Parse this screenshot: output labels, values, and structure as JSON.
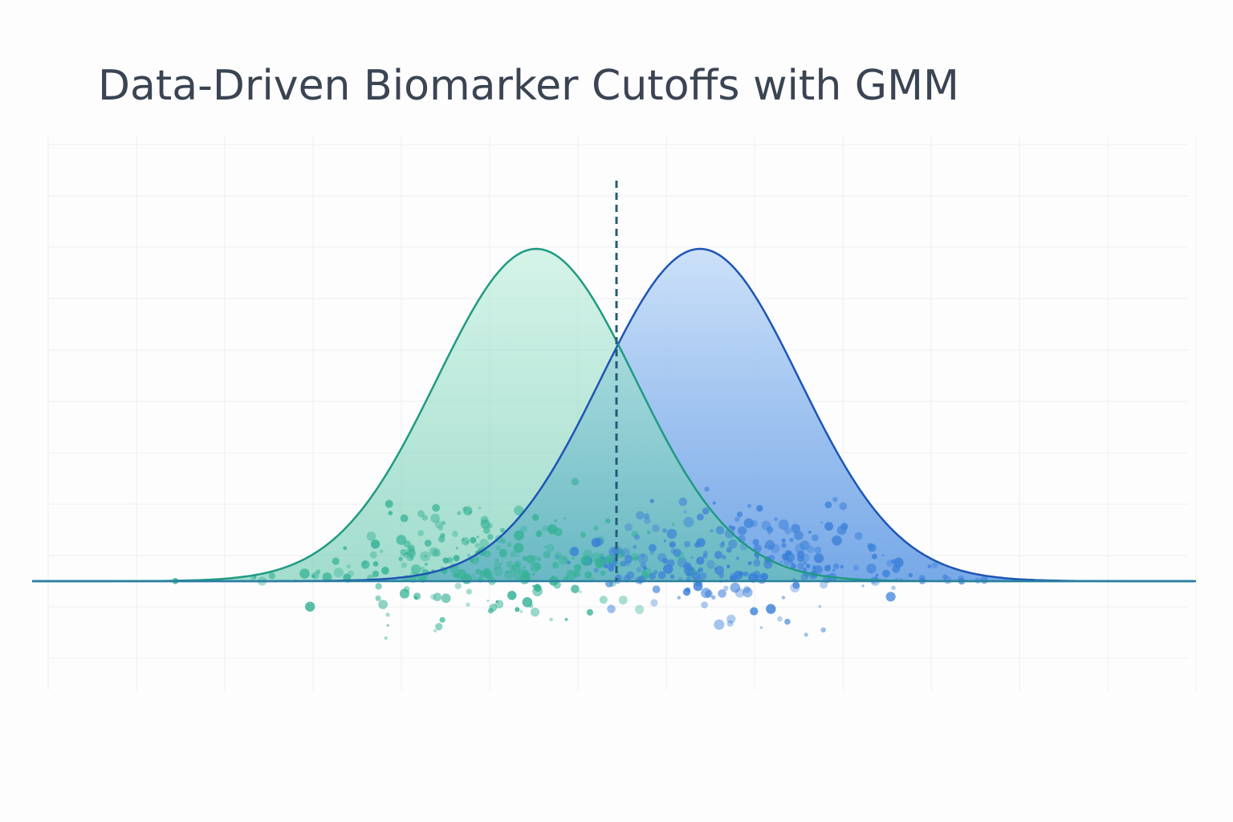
{
  "header": {
    "title": "Data-Driven Biomarker Cutoffs with GMM"
  }
}
